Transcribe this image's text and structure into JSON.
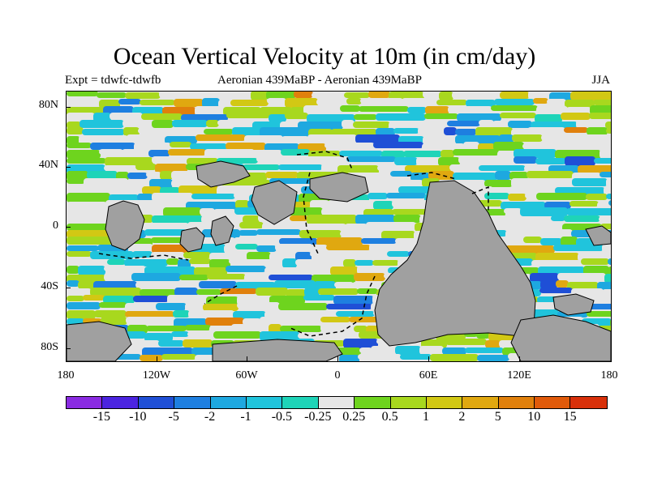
{
  "title": "Ocean Vertical Velocity at 10m (in cm/day)",
  "subtitle": {
    "left": "Expt = tdwfc-tdwfb",
    "center": "Aeronian 439MaBP - Aeronian 439MaBP",
    "right": "JJA"
  },
  "axes": {
    "y_labels": [
      "80N",
      "40N",
      "0",
      "40S",
      "80S"
    ],
    "y_values": [
      80,
      40,
      0,
      -40,
      -80
    ],
    "x_labels": [
      "180",
      "120W",
      "60W",
      "0",
      "60E",
      "120E",
      "180"
    ],
    "x_values": [
      -180,
      -120,
      -60,
      0,
      60,
      120,
      180
    ],
    "lat_range": [
      -90,
      90
    ],
    "lon_range": [
      -180,
      180
    ]
  },
  "colorbar": {
    "labels": [
      "-15",
      "-10",
      "-5",
      "-2",
      "-1",
      "-0.5",
      "-0.25",
      "0.25",
      "0.5",
      "1",
      "2",
      "5",
      "10",
      "15"
    ],
    "colors": [
      "#8a2be2",
      "#4b24e0",
      "#1f4fd6",
      "#1e7fe0",
      "#1ea8e0",
      "#20c4dc",
      "#1ed4b8",
      "#e6e6e6",
      "#6ed41e",
      "#a8d81e",
      "#d2c814",
      "#e0a810",
      "#e0800c",
      "#e05a0a",
      "#d8300a"
    ]
  },
  "colors": {
    "land": "#a0a0a0",
    "neutral": "#e6e6e6"
  }
}
